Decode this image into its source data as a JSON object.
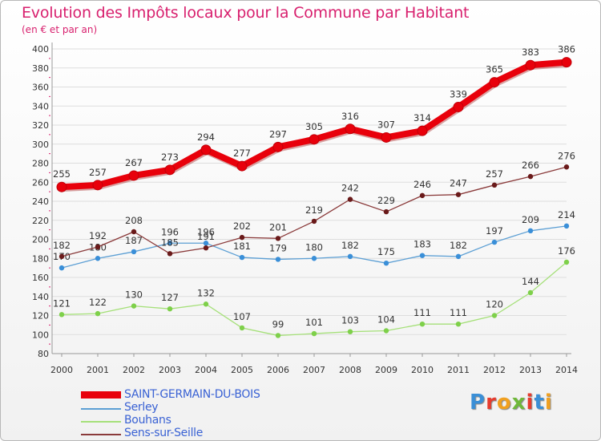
{
  "header": {
    "title": "Evolution des Impôts locaux pour la Commune par Habitant",
    "subtitle": "(en € et par an)"
  },
  "logo": {
    "text": "Proxiti",
    "letter_colors": [
      "#3b8fd6",
      "#e63c2e",
      "#f0a020",
      "#6fb83a",
      "#e63c2e",
      "#3b8fd6",
      "#f0a020"
    ]
  },
  "colors": {
    "title": "#d8206e",
    "legend_text": "#3a62d4",
    "axis_text": "#333333",
    "grid": "#dddddd"
  },
  "chart_data": {
    "type": "line",
    "title": "Evolution des Impôts locaux pour la Commune par Habitant",
    "subtitle": "(en € et par an)",
    "xlabel": "",
    "ylabel": "",
    "x": [
      2000,
      2001,
      2002,
      2003,
      2004,
      2005,
      2006,
      2007,
      2008,
      2009,
      2010,
      2011,
      2012,
      2013,
      2014
    ],
    "ylim": [
      80,
      400
    ],
    "yticks": [
      80,
      100,
      120,
      140,
      160,
      180,
      200,
      220,
      240,
      260,
      280,
      300,
      320,
      340,
      360,
      380,
      400
    ],
    "grid": "horizontal",
    "legend_position": "bottom-left",
    "series": [
      {
        "name": "SAINT-GERMAIN-DU-BOIS",
        "color": "#e8000b",
        "marker_color": "#e8000b",
        "weight": "thick",
        "values": [
          255,
          257,
          267,
          273,
          294,
          277,
          297,
          305,
          316,
          307,
          314,
          339,
          365,
          383,
          386
        ]
      },
      {
        "name": "Serley",
        "color": "#5c9fd4",
        "marker_color": "#3a8fd8",
        "weight": "thin",
        "values": [
          170,
          180,
          187,
          196,
          196,
          181,
          179,
          180,
          182,
          175,
          183,
          182,
          197,
          209,
          214
        ]
      },
      {
        "name": "Bouhans",
        "color": "#a6e07a",
        "marker_color": "#7ed04a",
        "weight": "thin",
        "values": [
          121,
          122,
          130,
          127,
          132,
          107,
          99,
          101,
          103,
          104,
          111,
          111,
          120,
          144,
          176
        ]
      },
      {
        "name": "Sens-sur-Seille",
        "color": "#8a3a3a",
        "marker_color": "#6a1a1a",
        "weight": "thin",
        "values": [
          182,
          192,
          208,
          185,
          191,
          202,
          201,
          219,
          242,
          229,
          246,
          247,
          257,
          266,
          276
        ]
      }
    ]
  }
}
